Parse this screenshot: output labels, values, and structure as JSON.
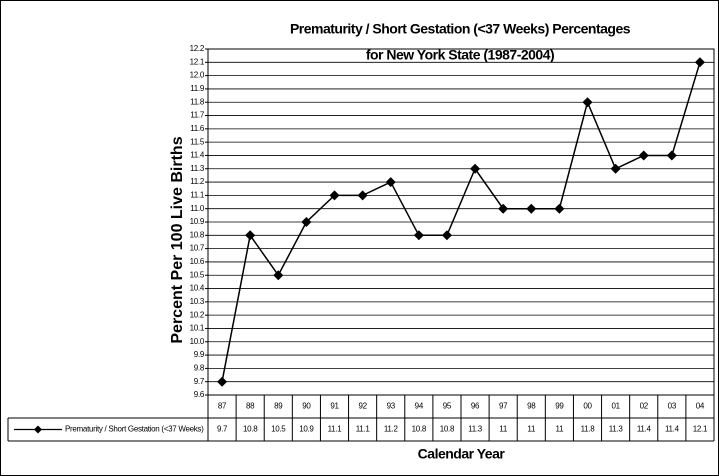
{
  "chart_data": {
    "type": "line",
    "title": "Prematurity / Short Gestation (<37 Weeks) Percentages",
    "subtitle": "for New York State (1987-2004)",
    "x_label": "Calendar Year",
    "y_label": "Percent Per 100 Live Births",
    "categories": [
      "87",
      "88",
      "89",
      "90",
      "91",
      "92",
      "93",
      "94",
      "95",
      "96",
      "97",
      "98",
      "99",
      "00",
      "01",
      "02",
      "03",
      "04"
    ],
    "series": [
      {
        "name": "Prematurity / Short Gestation (<37 Weeks)",
        "color": "#000000",
        "values": [
          9.7,
          10.8,
          10.5,
          10.9,
          11.1,
          11.1,
          11.2,
          10.8,
          10.8,
          11.3,
          11,
          11,
          11,
          11.8,
          11.3,
          11.4,
          11.4,
          12.1
        ]
      }
    ],
    "ylim": [
      9.6,
      12.2
    ],
    "yticks": [
      9.6,
      9.7,
      9.8,
      9.9,
      {
        "value": 10,
        "label": "10.0"
      },
      10.1,
      10.2,
      10.3,
      10.4,
      10.5,
      10.6,
      10.7,
      10.8,
      10.9,
      {
        "value": 11,
        "label": "11.0"
      },
      11.1,
      11.2,
      11.3,
      11.4,
      11.5,
      11.6,
      11.7,
      11.8,
      11.9,
      {
        "value": 12,
        "label": "12.0"
      },
      12.1,
      12.2
    ],
    "grid": true,
    "data_table": true
  }
}
